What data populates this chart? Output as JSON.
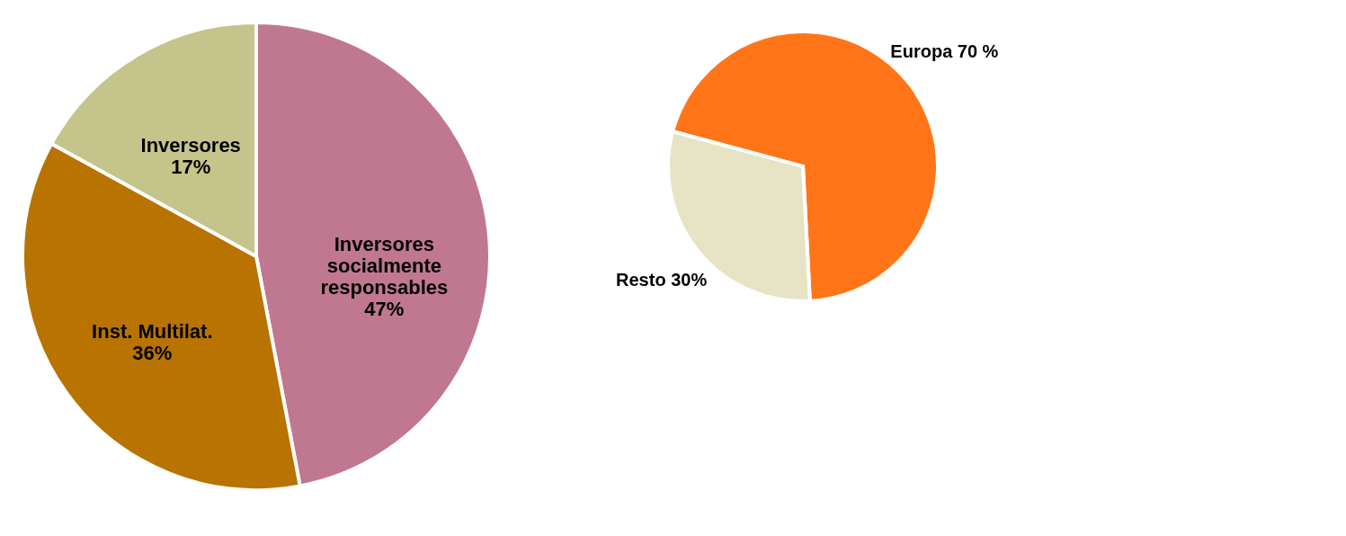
{
  "chart_data": [
    {
      "type": "pie",
      "categories": [
        "Inversores\nsocialmente\nresponsables",
        "Inst. Multilat.",
        "Inversores"
      ],
      "values": [
        47,
        36,
        17
      ],
      "value_labels": [
        "47%",
        "36%",
        "17%"
      ],
      "colors": [
        "#c07890",
        "#b87300",
        "#c5c48a"
      ]
    },
    {
      "type": "pie",
      "categories": [
        "Europa ",
        "Resto"
      ],
      "values": [
        70,
        30
      ],
      "value_labels": [
        "70 %",
        "30%"
      ],
      "colors": [
        "#ff7518",
        "#e6e4c4"
      ]
    }
  ]
}
